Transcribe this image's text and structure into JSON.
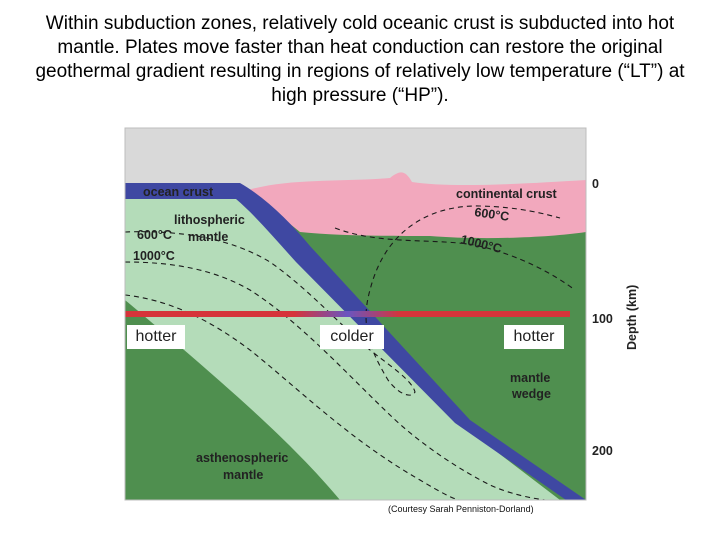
{
  "caption": "Within subduction zones, relatively cold oceanic crust is subducted into hot mantle. Plates move faster than heat conduction can restore the original geothermal gradient resulting in regions of relatively low temperature (“LT”) at high pressure (“HP”).",
  "diagram": {
    "labels": {
      "ocean_crust": "ocean crust",
      "continental_crust": "continental crust",
      "lithospheric_mantle_1": "lithospheric",
      "lithospheric_mantle_2": "mantle",
      "mantle_wedge_1": "mantle",
      "mantle_wedge_2": "wedge",
      "asthenospheric_mantle_1": "asthenospheric",
      "asthenospheric_mantle_2": "mantle"
    },
    "isotherms": {
      "left_600": "600°C",
      "left_1000": "1000°C",
      "right_600": "600°C",
      "right_1000": "1000°C"
    },
    "boxes": {
      "left": "hotter",
      "center": "colder",
      "right": "hotter"
    },
    "depth_axis": {
      "title": "Depth (km)",
      "ticks": [
        "0",
        "100",
        "200"
      ]
    },
    "credit": "(Courtesy Sarah Penniston-Dorland)",
    "colors": {
      "asthenosphere": "#4f8f4f",
      "lithospheric_mantle": "#b4dcb9",
      "ocean_crust": "#3f48a2",
      "continental_crust": "#f2a8bd",
      "sky": "#d9d9d9",
      "profile_hot": "#d6343a",
      "profile_cold": "#6a55c0"
    }
  }
}
